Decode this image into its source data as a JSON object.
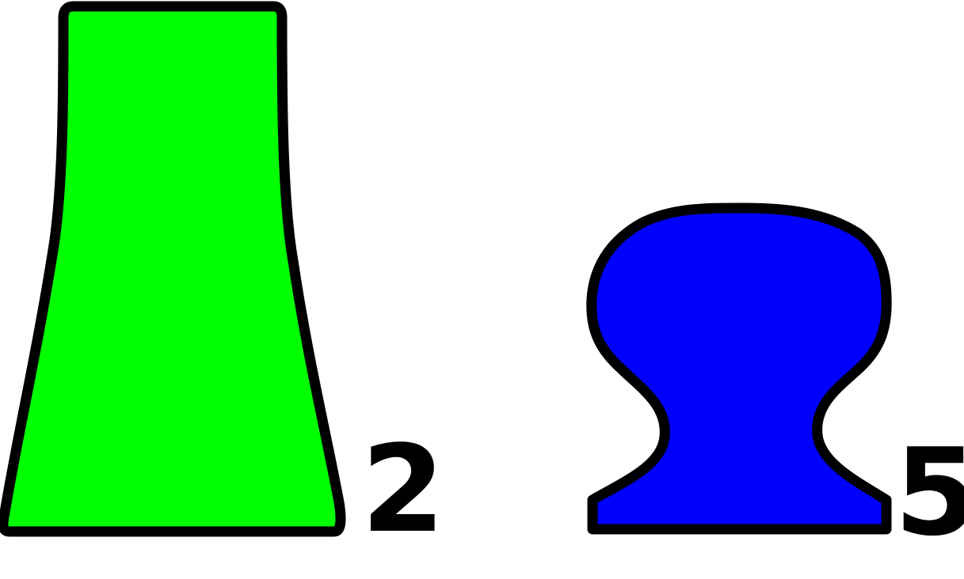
{
  "shapes": [
    {
      "id": "green-tapered-block",
      "fill_color": "#00ff00",
      "outline_color": "#000000",
      "label": "2"
    },
    {
      "id": "blue-rounded-knob",
      "fill_color": "#0000ff",
      "outline_color": "#000000",
      "label": "5"
    }
  ]
}
